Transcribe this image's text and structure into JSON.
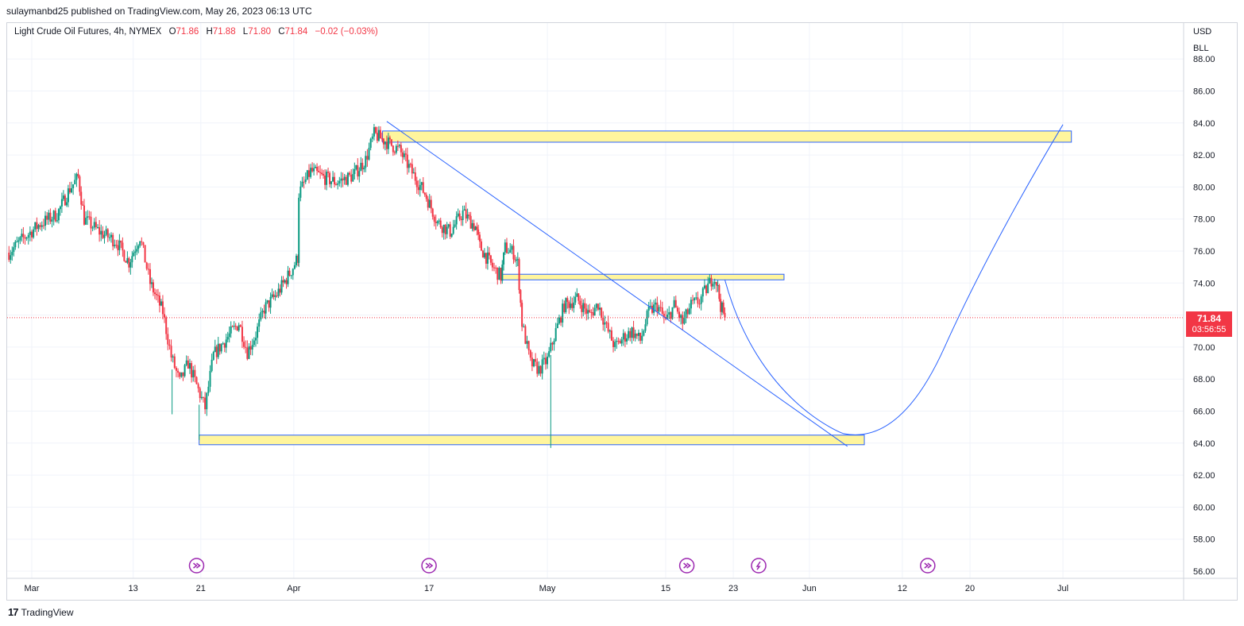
{
  "header": {
    "published_by": "sulaymanbd25 published on TradingView.com, May 26, 2023 06:13 UTC"
  },
  "legend": {
    "symbol": "Light Crude Oil Futures, 4h, NYMEX",
    "o_label": "O",
    "o_value": "71.86",
    "h_label": "H",
    "h_value": "71.88",
    "l_label": "L",
    "l_value": "71.80",
    "c_label": "C",
    "c_value": "71.84",
    "change": "−0.02 (−0.03%)"
  },
  "price_axis": {
    "currency": "USD",
    "unit": "BLL",
    "last_price": "71.84",
    "countdown": "03:56:55"
  },
  "footer": {
    "brand": "TradingView",
    "logo_text": "17"
  },
  "colors": {
    "up": "#089981",
    "down": "#f23645",
    "zone_fill": "#fff59d",
    "zone_border": "#2962ff",
    "line": "#2962ff",
    "event": "#9c27b0"
  },
  "chart_data": {
    "type": "candlestick",
    "title": "Light Crude Oil Futures, 4h, NYMEX",
    "y_ticks": [
      "88.00",
      "86.00",
      "84.00",
      "82.00",
      "80.00",
      "78.00",
      "76.00",
      "74.00",
      "72.00",
      "70.00",
      "68.00",
      "66.00",
      "64.00",
      "62.00",
      "60.00",
      "58.00",
      "56.00"
    ],
    "x_ticks": [
      {
        "label": "Mar",
        "day": 0
      },
      {
        "label": "13",
        "day": 12
      },
      {
        "label": "21",
        "day": 20
      },
      {
        "label": "Apr",
        "day": 31
      },
      {
        "label": "17",
        "day": 47
      },
      {
        "label": "May",
        "day": 61
      },
      {
        "label": "15",
        "day": 75
      },
      {
        "label": "23",
        "day": 83
      },
      {
        "label": "Jun",
        "day": 92
      },
      {
        "label": "12",
        "day": 103
      },
      {
        "label": "20",
        "day": 111
      },
      {
        "label": "Jul",
        "day": 122
      }
    ],
    "ylim": [
      55.5,
      89.0
    ],
    "close_path": [
      [
        -2.7,
        75.9
      ],
      [
        -1.0,
        76.8
      ],
      [
        1.0,
        77.7
      ],
      [
        3.0,
        78.3
      ],
      [
        4.5,
        79.9
      ],
      [
        5.5,
        80.6
      ],
      [
        6.2,
        78.0
      ],
      [
        8.0,
        77.2
      ],
      [
        10.0,
        76.6
      ],
      [
        11.5,
        75.3
      ],
      [
        12.8,
        76.9
      ],
      [
        14.0,
        74.0
      ],
      [
        15.5,
        72.2
      ],
      [
        16.5,
        69.4
      ],
      [
        17.5,
        67.8
      ],
      [
        18.5,
        69.0
      ],
      [
        19.5,
        67.6
      ],
      [
        20.5,
        66.2
      ],
      [
        21.5,
        69.5
      ],
      [
        23.0,
        70.5
      ],
      [
        24.5,
        71.5
      ],
      [
        25.5,
        69.7
      ],
      [
        26.5,
        70.8
      ],
      [
        27.5,
        72.4
      ],
      [
        29.0,
        73.3
      ],
      [
        30.5,
        74.6
      ],
      [
        31.5,
        75.6
      ],
      [
        31.6,
        79.6
      ],
      [
        33.0,
        81.0
      ],
      [
        34.5,
        80.6
      ],
      [
        36.0,
        80.3
      ],
      [
        38.0,
        80.7
      ],
      [
        39.5,
        81.7
      ],
      [
        40.5,
        83.3
      ],
      [
        42.0,
        82.8
      ],
      [
        43.5,
        82.3
      ],
      [
        45.0,
        80.9
      ],
      [
        46.5,
        79.6
      ],
      [
        48.0,
        77.8
      ],
      [
        49.5,
        77.2
      ],
      [
        51.0,
        78.4
      ],
      [
        52.5,
        77.5
      ],
      [
        53.0,
        76.3
      ],
      [
        54.5,
        75.0
      ],
      [
        55.5,
        74.4
      ],
      [
        56.0,
        76.2
      ],
      [
        57.0,
        75.9
      ],
      [
        57.5,
        75.2
      ],
      [
        58.0,
        71.5
      ],
      [
        59.0,
        69.0
      ],
      [
        60.0,
        68.6
      ],
      [
        61.0,
        69.2
      ],
      [
        62.0,
        71.0
      ],
      [
        63.0,
        72.6
      ],
      [
        64.5,
        73.0
      ],
      [
        66.0,
        72.0
      ],
      [
        67.0,
        72.7
      ],
      [
        68.0,
        71.2
      ],
      [
        69.0,
        70.0
      ],
      [
        70.0,
        70.6
      ],
      [
        71.0,
        71.0
      ],
      [
        72.0,
        70.4
      ],
      [
        73.0,
        72.2
      ],
      [
        74.0,
        72.6
      ],
      [
        75.0,
        71.6
      ],
      [
        76.0,
        72.6
      ],
      [
        77.0,
        71.5
      ],
      [
        78.0,
        72.6
      ],
      [
        79.0,
        72.9
      ],
      [
        80.0,
        73.8
      ],
      [
        80.6,
        74.4
      ],
      [
        81.0,
        74.1
      ],
      [
        81.5,
        72.6
      ],
      [
        82.0,
        71.8
      ]
    ],
    "annotations": {
      "zones": [
        {
          "from_day": 41.5,
          "to_day": 123.0,
          "top": 83.5,
          "bottom": 82.8
        },
        {
          "from_day": 55.7,
          "to_day": 89.0,
          "top": 74.55,
          "bottom": 74.2
        },
        {
          "from_day": 19.8,
          "to_day": 98.5,
          "top": 64.5,
          "bottom": 63.9
        }
      ],
      "trendline": {
        "from": [
          42.0,
          84.1
        ],
        "to": [
          96.5,
          63.8
        ]
      },
      "projection": [
        [
          82.0,
          74.2
        ],
        [
          86.0,
          66.5
        ],
        [
          96.0,
          64.6
        ],
        [
          122.0,
          83.9
        ]
      ],
      "event_icons": [
        {
          "day": 19.5,
          "kind": "arrow"
        },
        {
          "day": 47.0,
          "kind": "arrow"
        },
        {
          "day": 77.5,
          "kind": "arrow"
        },
        {
          "day": 86.0,
          "kind": "flash"
        },
        {
          "day": 106.0,
          "kind": "arrow"
        }
      ]
    },
    "last_value": 71.84
  }
}
